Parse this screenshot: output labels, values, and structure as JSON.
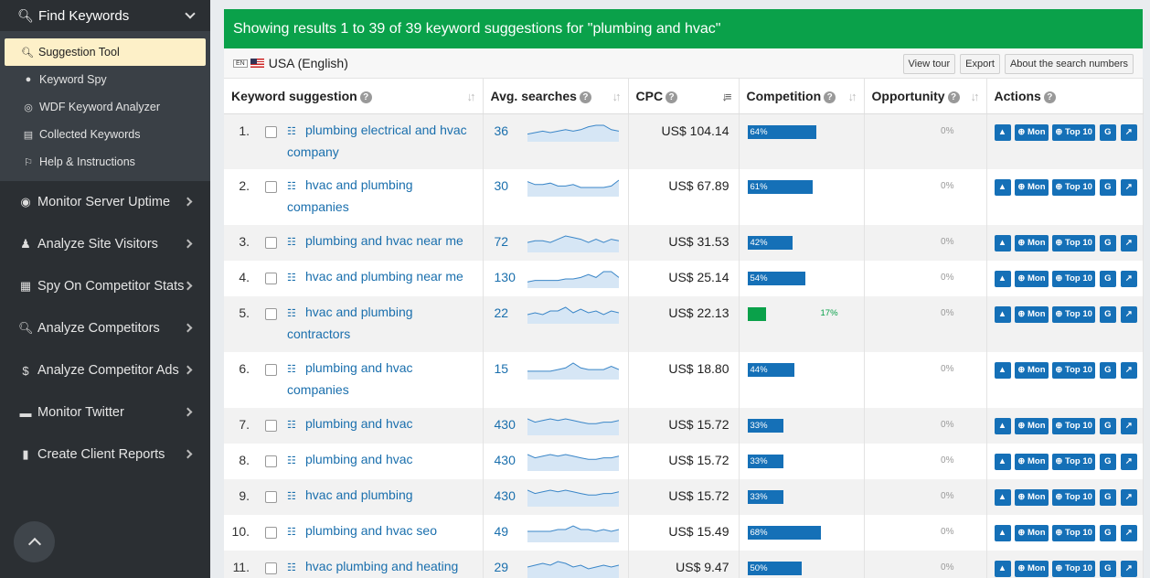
{
  "sidebar": {
    "head": {
      "icon": "search-plus-icon",
      "label": "Find Keywords"
    },
    "sub_items": [
      {
        "icon": "search-icon",
        "label": "Suggestion Tool",
        "active": true
      },
      {
        "icon": "user-icon",
        "label": "Keyword Spy"
      },
      {
        "icon": "target-icon",
        "label": "WDF Keyword Analyzer"
      },
      {
        "icon": "inbox-icon",
        "label": "Collected Keywords"
      },
      {
        "icon": "lightbulb-icon",
        "label": "Help & Instructions"
      }
    ],
    "items": [
      {
        "icon": "globe-icon",
        "label": "Monitor Server Uptime"
      },
      {
        "icon": "person-icon",
        "label": "Analyze Site Visitors"
      },
      {
        "icon": "building-icon",
        "label": "Spy On Competitor Stats"
      },
      {
        "icon": "search-icon",
        "label": "Analyze Competitors"
      },
      {
        "icon": "dollar-icon",
        "label": "Analyze Competitor Ads"
      },
      {
        "icon": "comments-icon",
        "label": "Monitor Twitter"
      },
      {
        "icon": "file-icon",
        "label": "Create Client Reports"
      }
    ]
  },
  "banner": "Showing results 1 to 39 of 39 keyword suggestions for \"plumbing and hvac\"",
  "locale": {
    "lang_badge": "EN",
    "label": "USA (English)"
  },
  "tools": [
    "View tour",
    "Export",
    "About the search numbers"
  ],
  "columns": [
    "Keyword suggestion",
    "Avg. searches",
    "CPC",
    "Competition",
    "Opportunity",
    "Actions"
  ],
  "action_labels": {
    "mon": "Mon",
    "top10": "Top 10",
    "google": "G"
  },
  "rows": [
    {
      "n": "1.",
      "kw": "plumbing electrical and hvac company",
      "avg": "36",
      "cpc": "US$ 104.14",
      "comp": 64,
      "comp_label": "64%",
      "opp": "0%",
      "spark": [
        4,
        5,
        6,
        5,
        6,
        7,
        6,
        7,
        9,
        10,
        10,
        7,
        6
      ]
    },
    {
      "n": "2.",
      "kw": "hvac and plumbing companies",
      "avg": "30",
      "cpc": "US$ 67.89",
      "comp": 61,
      "comp_label": "61%",
      "opp": "0%",
      "spark": [
        9,
        7,
        7,
        8,
        6,
        6,
        7,
        5,
        5,
        5,
        5,
        6,
        10
      ]
    },
    {
      "n": "3.",
      "kw": "plumbing and hvac near me",
      "avg": "72",
      "cpc": "US$ 31.53",
      "comp": 42,
      "comp_label": "42%",
      "opp": "0%",
      "spark": [
        5,
        6,
        6,
        5,
        7,
        9,
        8,
        7,
        5,
        7,
        5,
        7,
        6
      ]
    },
    {
      "n": "4.",
      "kw": "hvac and plumbing near me",
      "avg": "130",
      "cpc": "US$ 25.14",
      "comp": 54,
      "comp_label": "54%",
      "opp": "0%",
      "spark": [
        3,
        4,
        4,
        4,
        4,
        5,
        5,
        6,
        8,
        6,
        10,
        10,
        6
      ]
    },
    {
      "n": "5.",
      "kw": "hvac and plumbing contractors",
      "avg": "22",
      "cpc": "US$ 22.13",
      "comp": 17,
      "comp_label": "17%",
      "opp": "0%",
      "spark": [
        4,
        5,
        4,
        6,
        6,
        8,
        5,
        7,
        5,
        6,
        4,
        6,
        5
      ]
    },
    {
      "n": "6.",
      "kw": "plumbing and hvac companies",
      "avg": "15",
      "cpc": "US$ 18.80",
      "comp": 44,
      "comp_label": "44%",
      "opp": "0%",
      "spark": [
        4,
        4,
        4,
        4,
        5,
        6,
        9,
        6,
        5,
        5,
        5,
        7,
        5
      ]
    },
    {
      "n": "7.",
      "kw": "plumbing and hvac",
      "avg": "430",
      "cpc": "US$ 15.72",
      "comp": 33,
      "comp_label": "33%",
      "opp": "0%",
      "spark": [
        9,
        7,
        8,
        9,
        8,
        9,
        8,
        7,
        6,
        6,
        7,
        7,
        8
      ]
    },
    {
      "n": "8.",
      "kw": "plumbing and hvac",
      "avg": "430",
      "cpc": "US$ 15.72",
      "comp": 33,
      "comp_label": "33%",
      "opp": "0%",
      "spark": [
        9,
        7,
        8,
        9,
        8,
        9,
        8,
        7,
        6,
        6,
        7,
        7,
        8
      ]
    },
    {
      "n": "9.",
      "kw": "hvac and plumbing",
      "avg": "430",
      "cpc": "US$ 15.72",
      "comp": 33,
      "comp_label": "33%",
      "opp": "0%",
      "spark": [
        9,
        7,
        8,
        9,
        8,
        9,
        8,
        7,
        6,
        6,
        7,
        7,
        8
      ]
    },
    {
      "n": "10.",
      "kw": "plumbing and hvac seo",
      "avg": "49",
      "cpc": "US$ 15.49",
      "comp": 68,
      "comp_label": "68%",
      "opp": "0%",
      "spark": [
        5,
        5,
        5,
        5,
        6,
        6,
        8,
        6,
        6,
        5,
        6,
        5,
        6
      ]
    },
    {
      "n": "11.",
      "kw": "hvac plumbing and heating",
      "avg": "29",
      "cpc": "US$ 9.47",
      "comp": 50,
      "comp_label": "50%",
      "opp": "0%",
      "spark": [
        5,
        6,
        7,
        6,
        8,
        7,
        5,
        6,
        4,
        5,
        6,
        5,
        6
      ]
    }
  ]
}
